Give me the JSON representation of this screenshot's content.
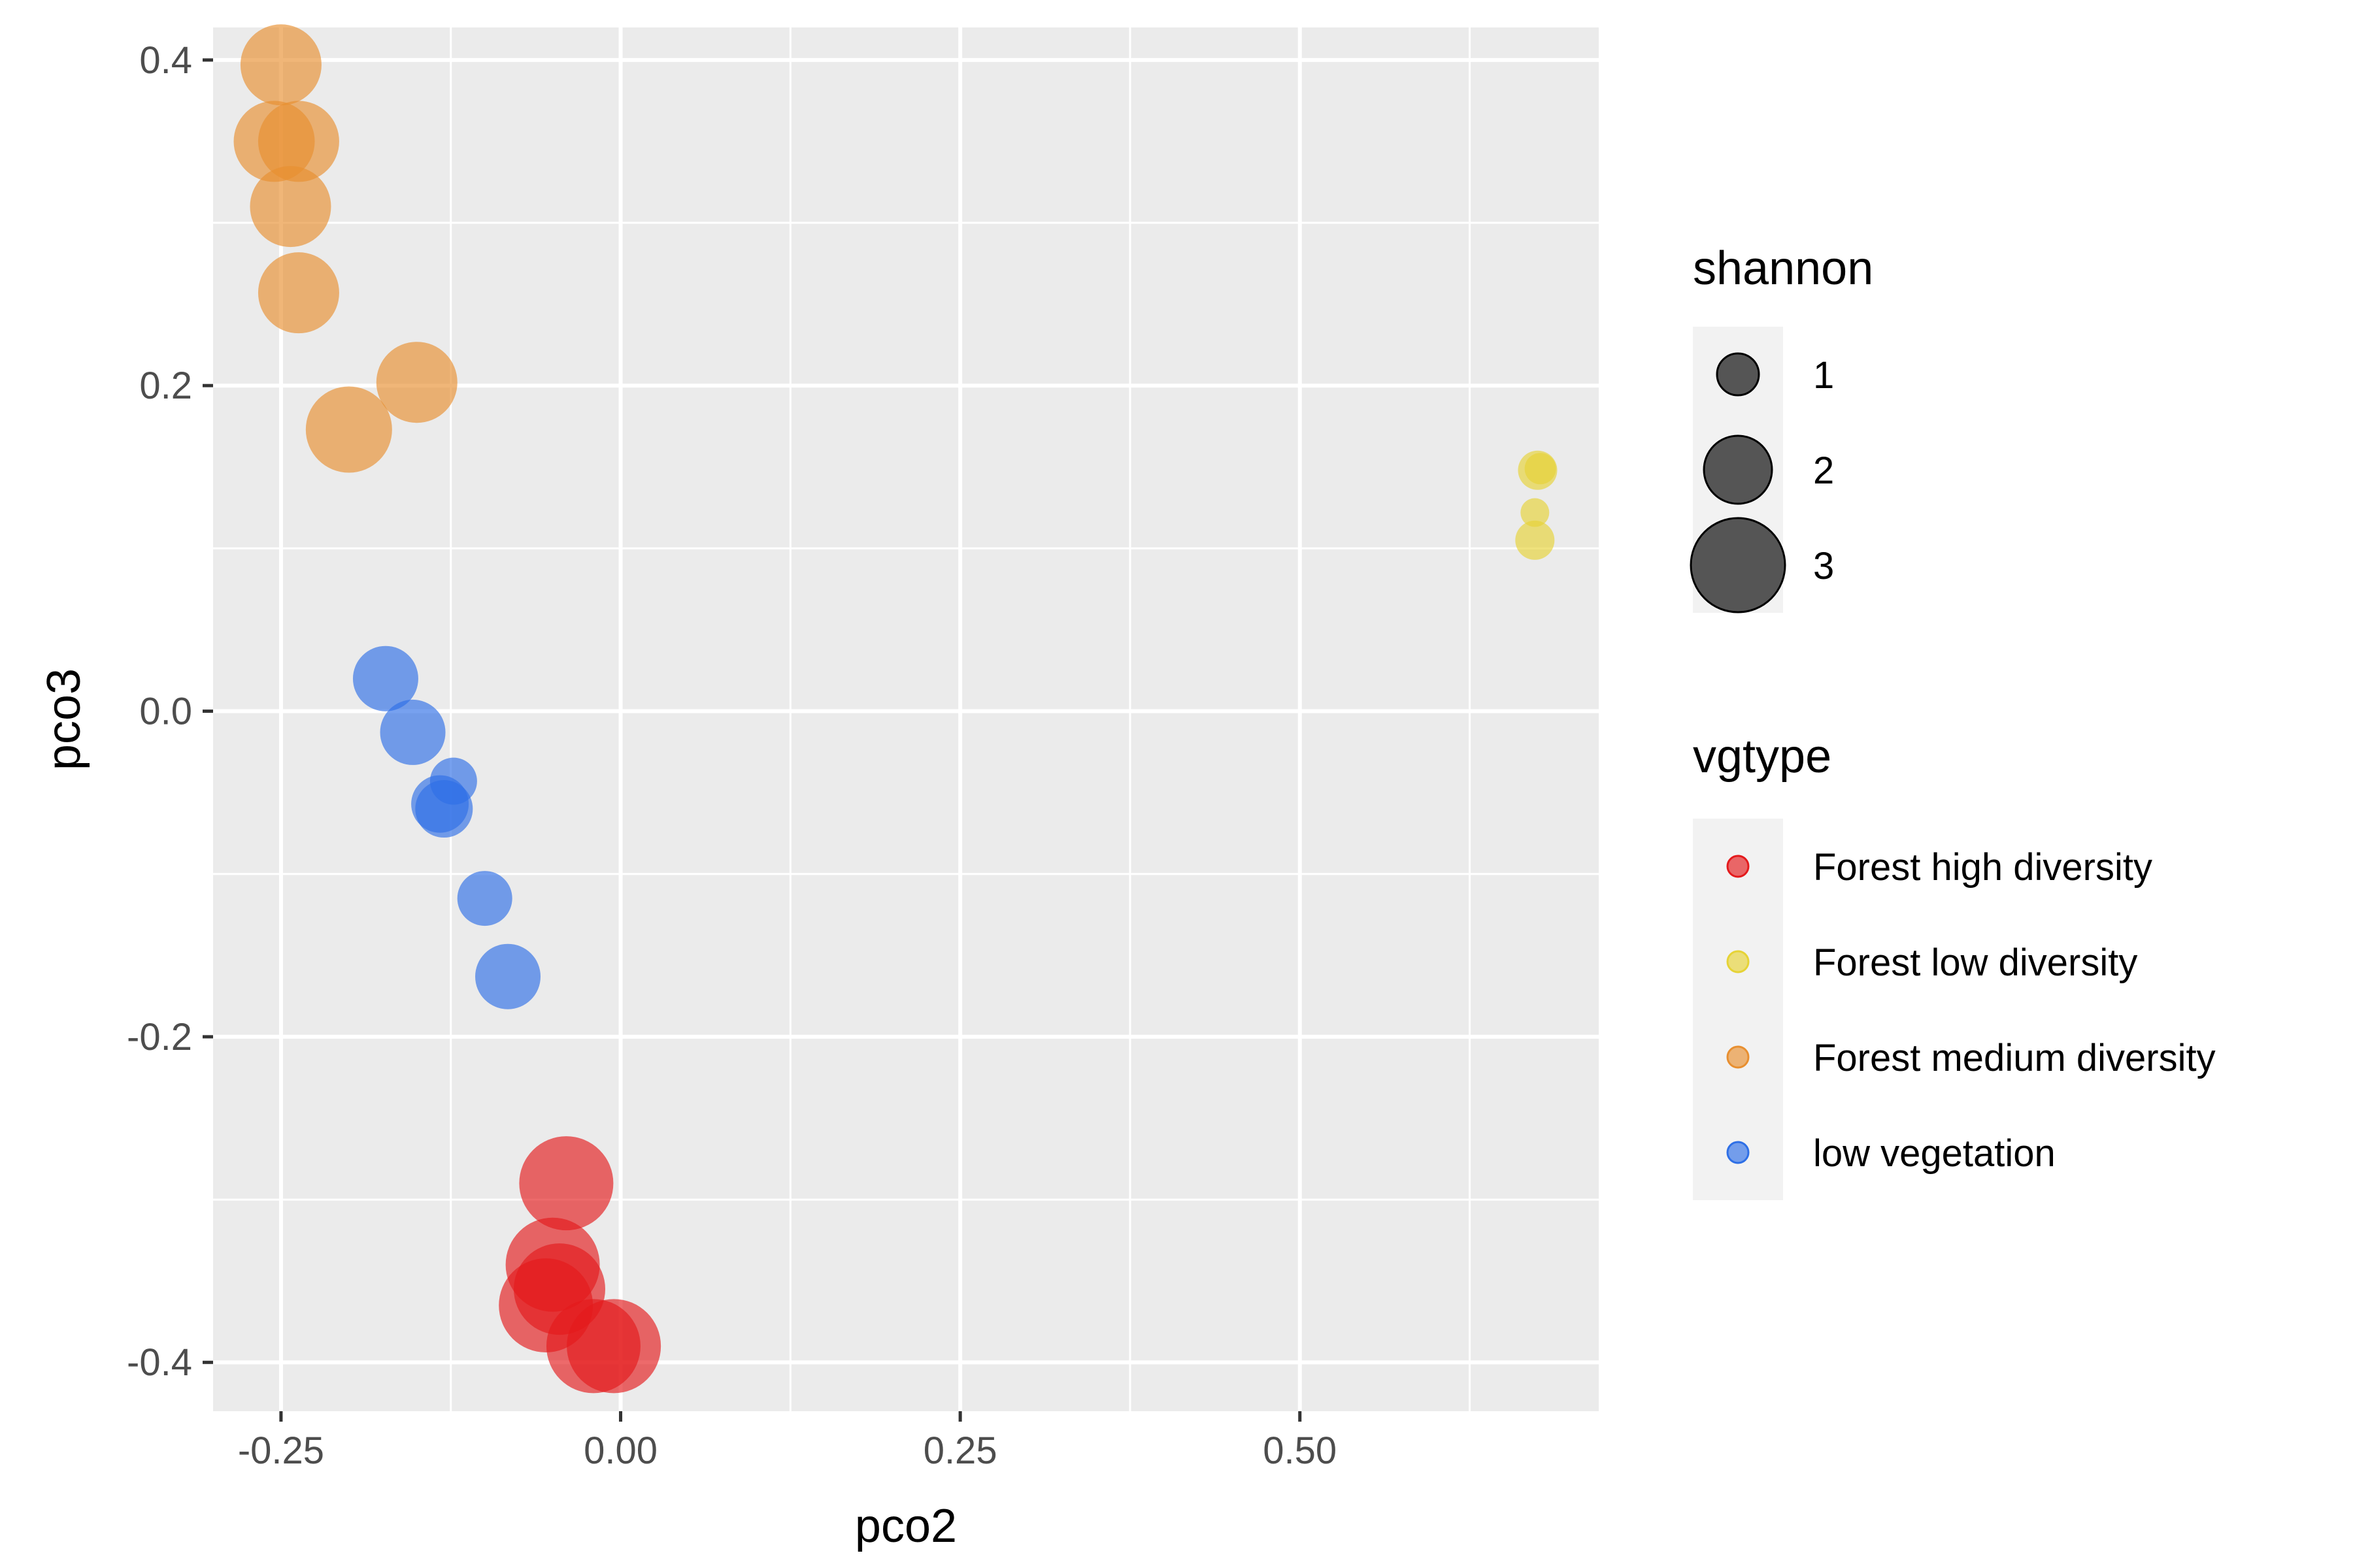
{
  "chart_data": {
    "type": "scatter",
    "xlabel": "pco2",
    "ylabel": "pco3",
    "xlim": [
      -0.3,
      0.72
    ],
    "ylim": [
      -0.43,
      0.42
    ],
    "x_ticks": [
      -0.25,
      0.0,
      0.25,
      0.5
    ],
    "x_tick_labels": [
      "-0.25",
      "0.00",
      "0.25",
      "0.50"
    ],
    "y_ticks": [
      0.4,
      0.2,
      0.0,
      -0.2,
      -0.4
    ],
    "y_tick_labels": [
      "0.4",
      "0.2",
      "0.0",
      "-0.2",
      "-0.4"
    ],
    "grid": true,
    "panel_background": "#ebebeb",
    "size_legend": {
      "title": "shannon",
      "entries": [
        {
          "label": "1",
          "value": 1
        },
        {
          "label": "2",
          "value": 2
        },
        {
          "label": "3",
          "value": 3
        }
      ]
    },
    "color_legend": {
      "title": "vgtype",
      "placement": "right"
    },
    "series": [
      {
        "name": "Forest high diversity",
        "color": "#e41a1c",
        "points": [
          {
            "x": -0.04,
            "y": -0.29,
            "shannon": 3.0
          },
          {
            "x": -0.05,
            "y": -0.34,
            "shannon": 3.0
          },
          {
            "x": -0.045,
            "y": -0.355,
            "shannon": 2.9
          },
          {
            "x": -0.055,
            "y": -0.365,
            "shannon": 3.0
          },
          {
            "x": -0.02,
            "y": -0.39,
            "shannon": 3.0
          },
          {
            "x": -0.005,
            "y": -0.39,
            "shannon": 3.0
          }
        ]
      },
      {
        "name": "Forest low diversity",
        "color": "#e6d336",
        "points": [
          {
            "x": 0.675,
            "y": 0.148,
            "shannon": 0.9
          },
          {
            "x": 0.677,
            "y": 0.149,
            "shannon": 0.6
          },
          {
            "x": 0.673,
            "y": 0.122,
            "shannon": 0.5
          },
          {
            "x": 0.673,
            "y": 0.105,
            "shannon": 0.9
          }
        ]
      },
      {
        "name": "Forest medium diversity",
        "color": "#e88f30",
        "points": [
          {
            "x": -0.25,
            "y": 0.397,
            "shannon": 2.5
          },
          {
            "x": -0.255,
            "y": 0.35,
            "shannon": 2.5
          },
          {
            "x": -0.237,
            "y": 0.35,
            "shannon": 2.5
          },
          {
            "x": -0.243,
            "y": 0.31,
            "shannon": 2.5
          },
          {
            "x": -0.237,
            "y": 0.257,
            "shannon": 2.5
          },
          {
            "x": -0.15,
            "y": 0.202,
            "shannon": 2.5
          },
          {
            "x": -0.2,
            "y": 0.173,
            "shannon": 2.7
          }
        ]
      },
      {
        "name": "low vegetation",
        "color": "#2e6fe6",
        "points": [
          {
            "x": -0.173,
            "y": 0.02,
            "shannon": 1.9
          },
          {
            "x": -0.153,
            "y": -0.013,
            "shannon": 1.9
          },
          {
            "x": -0.123,
            "y": -0.043,
            "shannon": 1.2
          },
          {
            "x": -0.133,
            "y": -0.057,
            "shannon": 1.6
          },
          {
            "x": -0.13,
            "y": -0.06,
            "shannon": 1.6
          },
          {
            "x": -0.1,
            "y": -0.115,
            "shannon": 1.5
          },
          {
            "x": -0.083,
            "y": -0.163,
            "shannon": 1.9
          }
        ]
      }
    ]
  }
}
